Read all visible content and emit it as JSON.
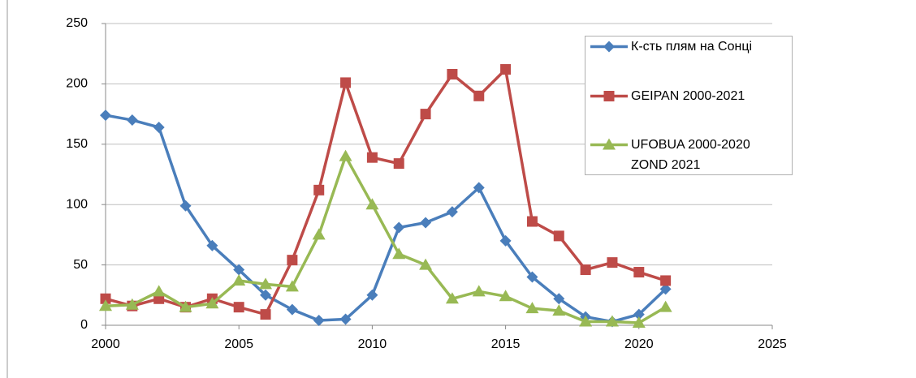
{
  "chart_data": {
    "type": "line",
    "x": [
      2000,
      2001,
      2002,
      2003,
      2004,
      2005,
      2006,
      2007,
      2008,
      2009,
      2010,
      2011,
      2012,
      2013,
      2014,
      2015,
      2016,
      2017,
      2018,
      2019,
      2020,
      2021
    ],
    "series": [
      {
        "name": "К-сть плям на Сонці",
        "color": "#4a7ebb",
        "marker": "diamond",
        "values": [
          174,
          170,
          164,
          99,
          66,
          46,
          25,
          13,
          4,
          5,
          25,
          81,
          85,
          94,
          114,
          70,
          40,
          22,
          7,
          3,
          9,
          30
        ]
      },
      {
        "name": "GEIPAN 2000-2021",
        "color": "#be4b48",
        "marker": "square",
        "values": [
          22,
          16,
          22,
          15,
          22,
          15,
          9,
          54,
          112,
          201,
          139,
          134,
          175,
          208,
          190,
          212,
          86,
          74,
          46,
          52,
          44,
          37
        ]
      },
      {
        "name": "UFOBUA 2000-2020 ZOND 2021",
        "color": "#98b954",
        "marker": "triangle",
        "values": [
          16,
          17,
          28,
          15,
          18,
          37,
          34,
          32,
          75,
          140,
          100,
          59,
          50,
          22,
          28,
          24,
          14,
          12,
          3,
          3,
          2,
          15
        ]
      }
    ],
    "xlim": [
      2000,
      2025
    ],
    "xticks": [
      2000,
      2005,
      2010,
      2015,
      2020,
      2025
    ],
    "ylim": [
      0,
      250
    ],
    "yticks": [
      0,
      50,
      100,
      150,
      200,
      250
    ],
    "grid": true,
    "legend": "right"
  }
}
